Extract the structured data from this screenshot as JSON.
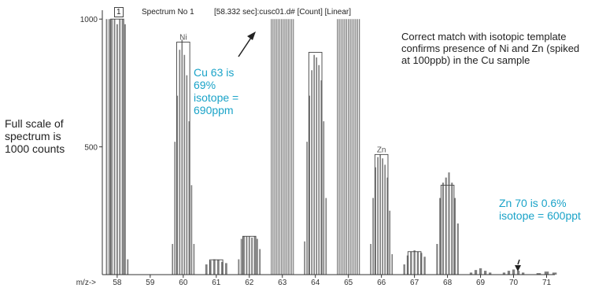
{
  "header": {
    "spectrum_index": "1",
    "spectrum_label": "Spectrum No 1",
    "file_info": "[58.332 sec]:cusc01.d# [Count] [Linear]"
  },
  "annotations": {
    "full_scale": [
      "Full scale of",
      "spectrum is",
      "1000 counts"
    ],
    "match_note": [
      "Correct match with isotopic template",
      "confirms presence of Ni and Zn (spiked",
      "at 100ppb) in the Cu sample"
    ],
    "cu_note": [
      "Cu 63 is",
      "69%",
      "isotope =",
      "690ppm"
    ],
    "zn_note": [
      "Zn 70 is 0.6%",
      "isotope = 600ppt"
    ]
  },
  "colors": {
    "bars": "#7f7f7f",
    "axis": "#333333",
    "accent_text": "#1aa3c8",
    "arrow": "#222222"
  },
  "chart_data": {
    "type": "bar",
    "xlabel": "m/z->",
    "ylabel": "",
    "xlim": [
      58,
      71
    ],
    "ylim": [
      0,
      1050
    ],
    "x_ticks": [
      58,
      59,
      60,
      61,
      62,
      63,
      64,
      65,
      66,
      67,
      68,
      69,
      70,
      71
    ],
    "y_ticks": [
      500,
      1000
    ],
    "groups": [
      {
        "mass": 58,
        "values": [
          1000,
          1000,
          1000,
          1000,
          980,
          1000,
          1000,
          980,
          60
        ],
        "label": "",
        "template_box": true,
        "box_value": 1000
      },
      {
        "mass": 60,
        "values": [
          120,
          520,
          700,
          880,
          920,
          860,
          780,
          600,
          350,
          120
        ],
        "label": "Ni",
        "template_box": true,
        "box_value": 910
      },
      {
        "mass": 61,
        "values": [
          40,
          55,
          60,
          58,
          50,
          45
        ],
        "label": "",
        "template_box": true,
        "box_value": 58
      },
      {
        "mass": 62,
        "values": [
          60,
          140,
          150,
          150,
          150,
          145,
          150,
          140,
          100
        ],
        "label": "",
        "template_box": true,
        "box_value": 150
      },
      {
        "mass": 63,
        "values": [
          1000,
          1000,
          1000,
          1000,
          1000,
          1000,
          1000,
          1000,
          1000,
          1000,
          1000,
          1000,
          1000,
          1000
        ],
        "label": "",
        "template_box": false,
        "box_value": 0
      },
      {
        "mass": 64,
        "values": [
          130,
          520,
          700,
          800,
          860,
          850,
          820,
          760,
          600,
          300
        ],
        "label": "",
        "template_box": true,
        "box_value": 870
      },
      {
        "mass": 65,
        "values": [
          1000,
          1000,
          1000,
          1000,
          1000,
          1000,
          1000,
          1000,
          1000,
          1000,
          1000,
          1000,
          1000
        ],
        "label": "",
        "template_box": false,
        "box_value": 0
      },
      {
        "mass": 66,
        "values": [
          120,
          300,
          420,
          460,
          470,
          455,
          430,
          380,
          250,
          80
        ],
        "label": "Zn",
        "template_box": true,
        "box_value": 470
      },
      {
        "mass": 67,
        "values": [
          40,
          75,
          90,
          95,
          90,
          85,
          70
        ],
        "label": "",
        "template_box": true,
        "box_value": 90
      },
      {
        "mass": 68,
        "values": [
          120,
          300,
          360,
          380,
          400,
          360,
          300,
          200
        ],
        "label": "",
        "template_box": true,
        "box_value": 350
      },
      {
        "mass": 69,
        "values": [
          8,
          18,
          25,
          15,
          8
        ],
        "label": "",
        "template_box": false,
        "box_value": 0
      },
      {
        "mass": 70,
        "values": [
          8,
          15,
          20,
          15,
          8
        ],
        "label": "",
        "template_box": false,
        "box_value": 0
      },
      {
        "mass": 71,
        "values": [
          6,
          12,
          8
        ],
        "label": "",
        "template_box": false,
        "box_value": 0
      }
    ]
  }
}
